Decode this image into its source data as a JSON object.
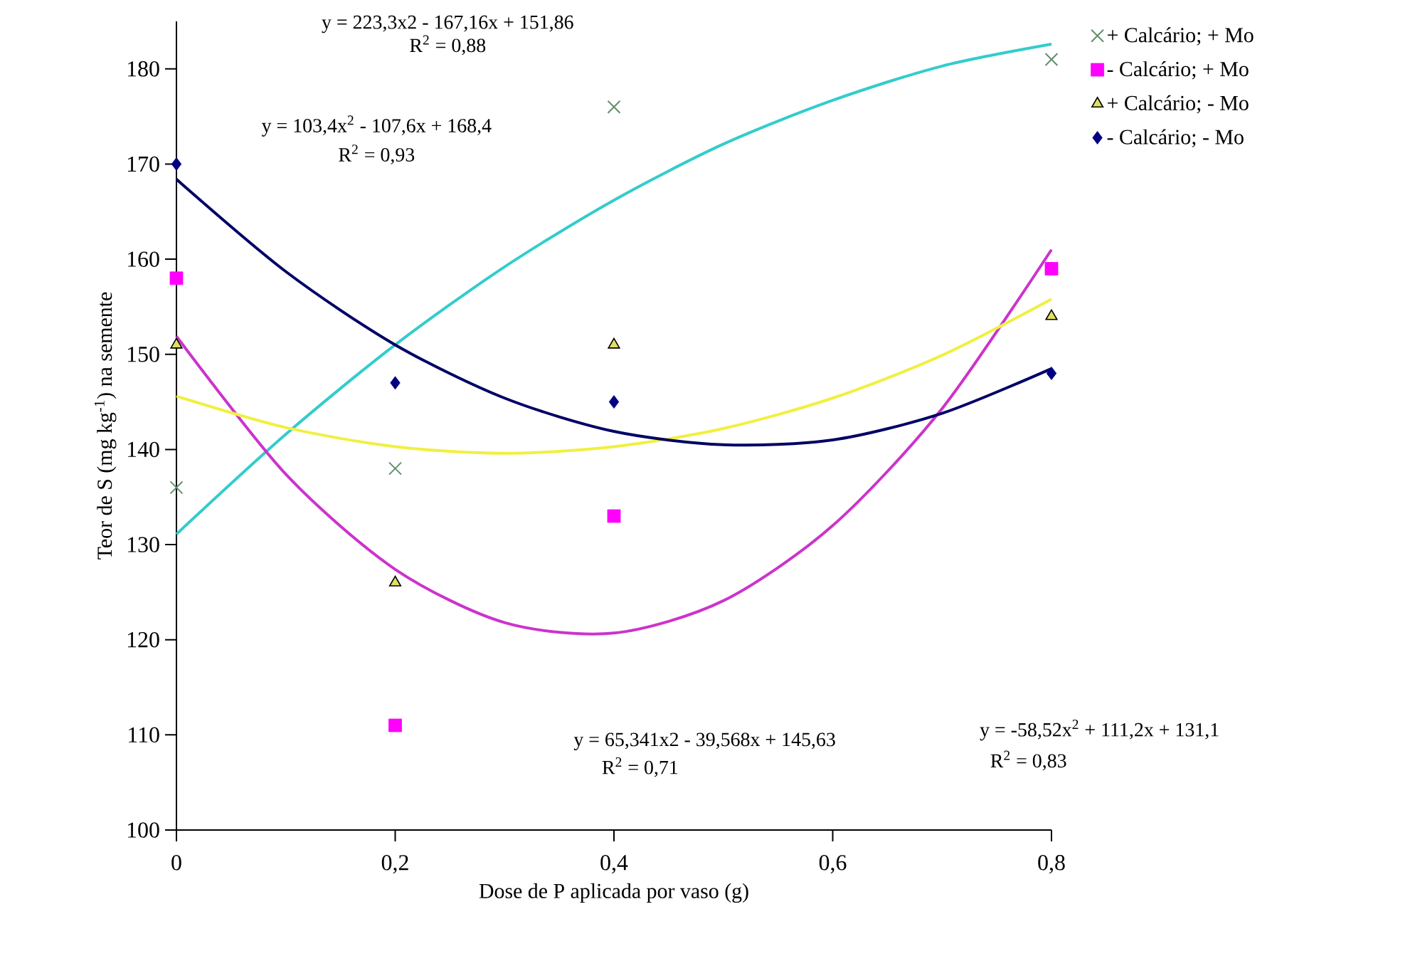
{
  "chart_data": {
    "type": "scatter",
    "xlabel": "Dose de P aplicada por vaso  (g)",
    "ylabel": "Teor de S (mg kg$^{-1}$) na semente",
    "x": [
      0,
      0.2,
      0.4,
      0.8
    ],
    "xlim": [
      0,
      0.8
    ],
    "ylim": [
      100,
      185
    ],
    "xticks": [
      {
        "value": 0,
        "label": "0"
      },
      {
        "value": 0.2,
        "label": "0,2"
      },
      {
        "value": 0.4,
        "label": "0,4"
      },
      {
        "value": 0.6,
        "label": "0,6"
      },
      {
        "value": 0.8,
        "label": "0,8"
      }
    ],
    "yticks": [
      100,
      110,
      120,
      130,
      140,
      150,
      160,
      170,
      180
    ],
    "grid": false,
    "legend": "right",
    "series": [
      {
        "name": "+ Calcário; + Mo",
        "color": "#5f8f6a",
        "marker": "cross",
        "values": [
          136,
          138,
          176,
          181
        ]
      },
      {
        "name": "- Calcário; + Mo",
        "color": "#ff00ff",
        "marker": "square",
        "values": [
          158,
          111,
          133,
          159
        ]
      },
      {
        "name": "+ Calcário; - Mo",
        "color": "#e0e060",
        "marker": "triangle",
        "values": [
          151,
          126,
          151,
          154
        ]
      },
      {
        "name": "- Calcário; - Mo",
        "color": "#000080",
        "marker": "diamond",
        "values": [
          170,
          147,
          145,
          148
        ]
      },
      {
        "type": "line",
        "color": "#33cccc",
        "marker": "none",
        "line_style": "solid",
        "x": [
          0,
          0.1,
          0.2,
          0.3,
          0.4,
          0.5,
          0.6,
          0.7,
          0.8
        ],
        "values": [
          131.1,
          141.6,
          151.0,
          159.2,
          166.2,
          172.1,
          176.7,
          180.3,
          182.6
        ]
      },
      {
        "type": "line",
        "color": "#cc33cc",
        "marker": "none",
        "line_style": "solid",
        "x": [
          0,
          0.1,
          0.2,
          0.3,
          0.4,
          0.5,
          0.6,
          0.7,
          0.8
        ],
        "values": [
          151.9,
          137.4,
          127.4,
          121.8,
          120.7,
          124.1,
          132.0,
          144.3,
          161.0
        ]
      },
      {
        "type": "line",
        "color": "#f0f040",
        "marker": "none",
        "line_style": "solid",
        "x": [
          0,
          0.1,
          0.2,
          0.3,
          0.4,
          0.5,
          0.6,
          0.7,
          0.8
        ],
        "values": [
          145.6,
          142.3,
          140.3,
          139.6,
          140.3,
          142.2,
          145.4,
          149.9,
          155.8
        ]
      },
      {
        "type": "line",
        "color": "#000066",
        "marker": "none",
        "line_style": "solid",
        "x": [
          0,
          0.1,
          0.2,
          0.3,
          0.4,
          0.5,
          0.6,
          0.7,
          0.8
        ],
        "values": [
          168.4,
          158.7,
          151.0,
          145.4,
          141.9,
          140.5,
          141.0,
          143.8,
          148.5
        ]
      }
    ],
    "annotations": [
      "y = 223,3x2 - 167,16x + 151,86",
      "R$^{2}$ = 0,88",
      "y = 103,4x$^{2}$ - 107,6x + 168,4",
      "R$^{2}$ = 0,93",
      "y = 65,341x2 - 39,568x + 145,63",
      "R$^{2}$ = 0,71",
      "y = -58,52x$^{2}$ + 111,2x + 131,1",
      "R$^{2}$ = 0,83"
    ]
  }
}
